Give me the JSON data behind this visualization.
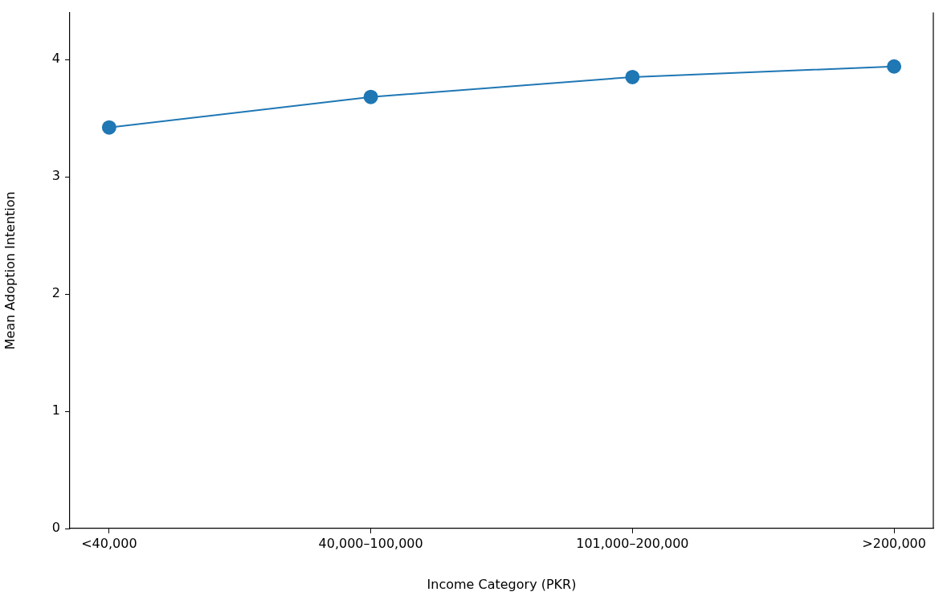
{
  "chart_data": {
    "type": "line",
    "xlabel": "Income Category (PKR)",
    "ylabel": "Mean Adoption Intention",
    "categories": [
      "<40,000",
      "40,000–100,000",
      "101,000–200,000",
      ">200,000"
    ],
    "series": [
      {
        "color": "#1f77b4",
        "values": [
          3.42,
          3.68,
          3.85,
          3.94
        ]
      }
    ],
    "ylim": [
      0,
      4.4
    ],
    "yticks": [
      0,
      1,
      2,
      3,
      4
    ],
    "marker": "circle"
  }
}
